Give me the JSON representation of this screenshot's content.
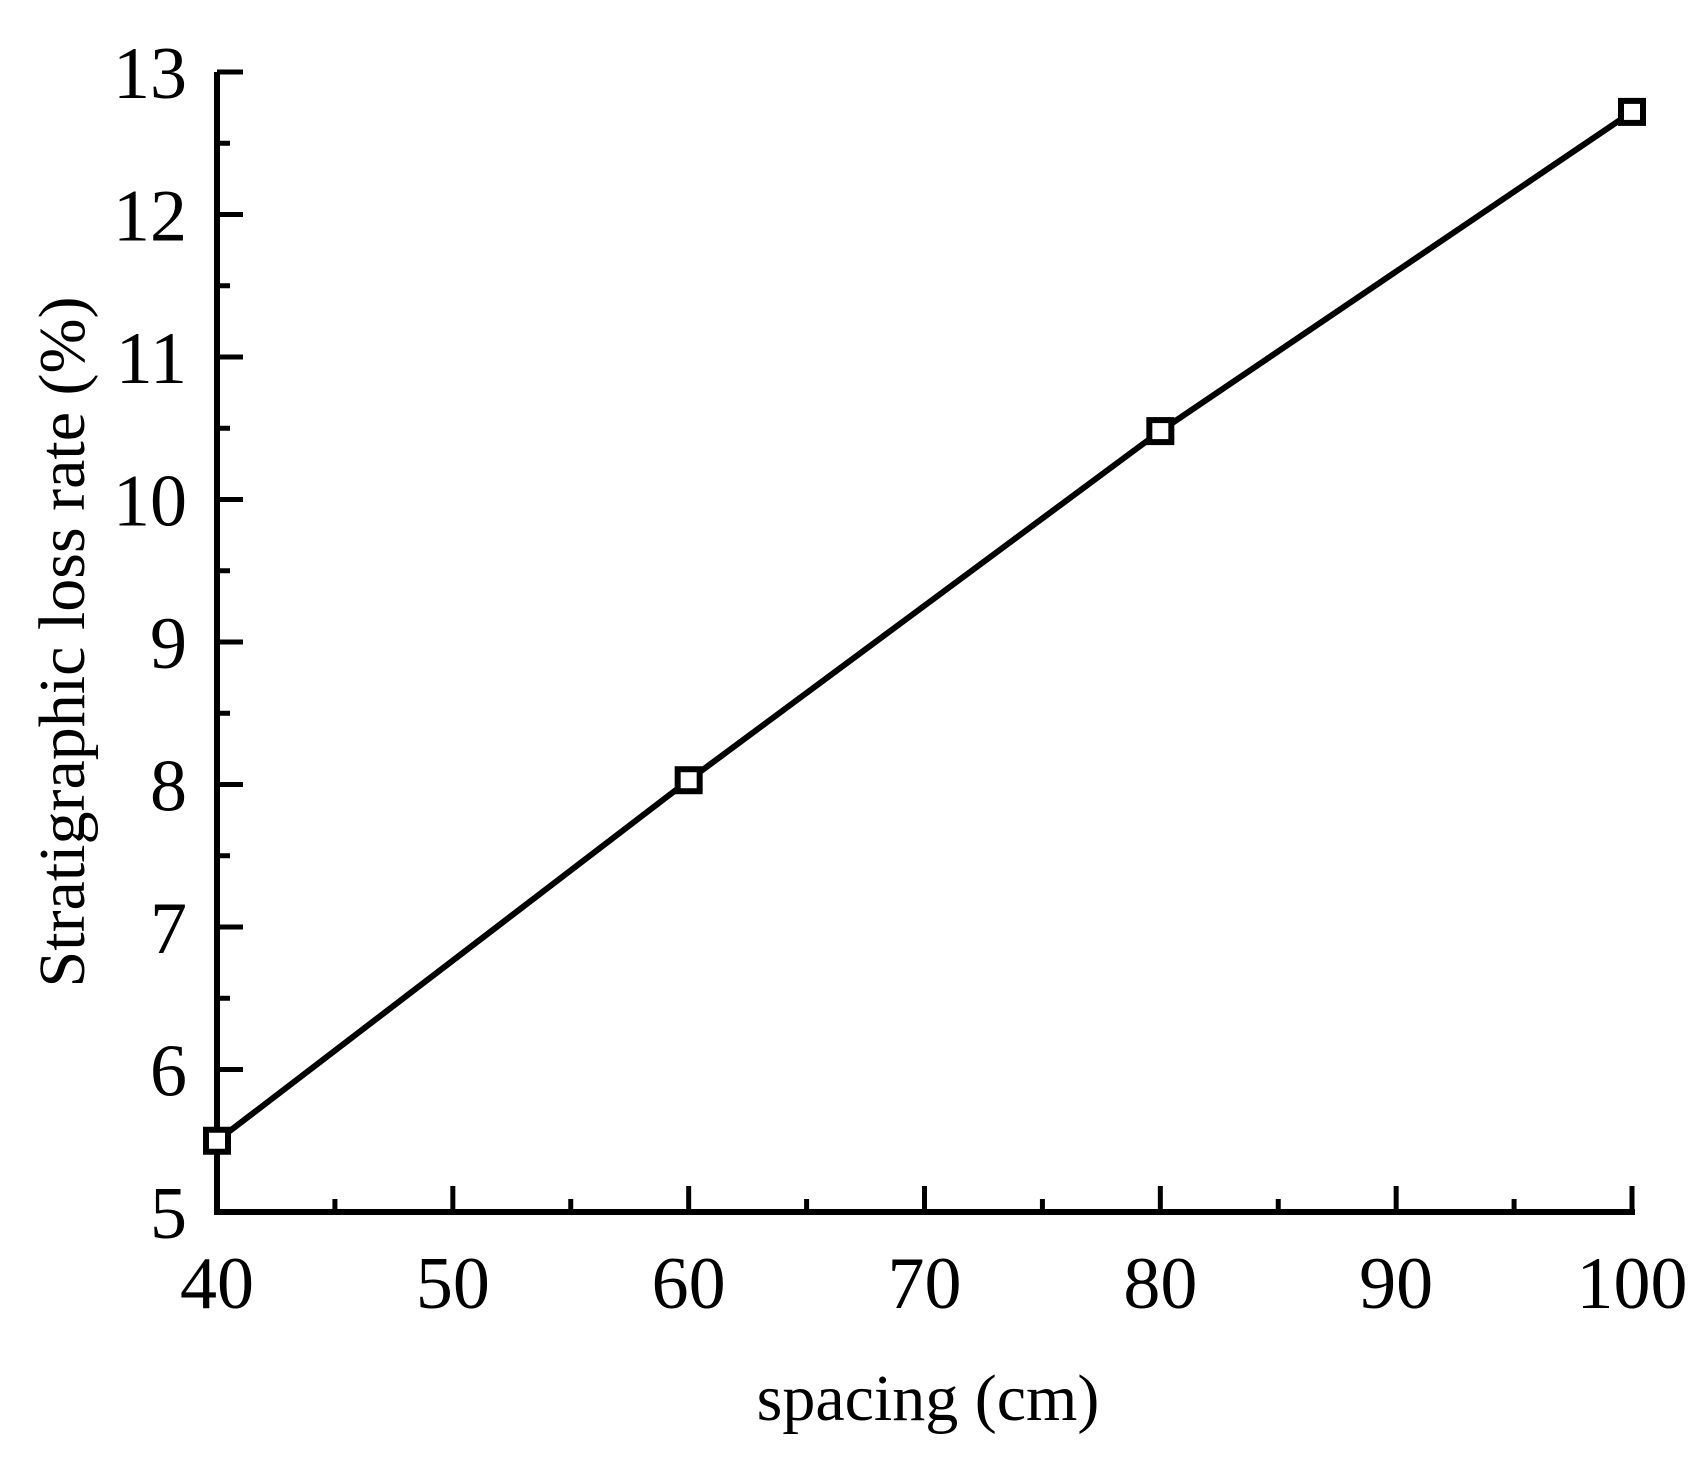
{
  "chart_data": {
    "type": "line",
    "xlabel": "spacing (cm)",
    "ylabel": "Stratigraphic loss rate (%)",
    "xlim": [
      40,
      100
    ],
    "ylim": [
      5,
      13
    ],
    "x_ticks": [
      40,
      50,
      60,
      70,
      80,
      90,
      100
    ],
    "y_ticks": [
      5,
      6,
      7,
      8,
      9,
      10,
      11,
      12,
      13
    ],
    "x_minor_step": 5,
    "y_minor_step": 0.5,
    "grid": false,
    "legend": "none",
    "marker": "open-square",
    "line_color": "#000000",
    "series": [
      {
        "x": [
          40,
          60,
          80,
          100
        ],
        "values": [
          5.5,
          8.03,
          10.48,
          12.72
        ]
      }
    ]
  }
}
